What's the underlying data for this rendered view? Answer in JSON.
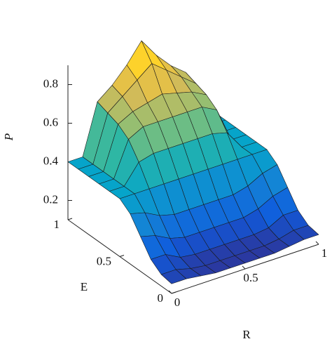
{
  "chart_data": {
    "type": "surface",
    "xlabel": "R",
    "ylabel": "E",
    "zlabel": "P",
    "xlim": [
      0,
      1
    ],
    "xticks": [
      0,
      0.5,
      1
    ],
    "ylim": [
      0,
      1
    ],
    "yticks": [
      0,
      0.5,
      1
    ],
    "zlim": [
      0.1,
      0.9
    ],
    "zticks": [
      0.2,
      0.4,
      0.6,
      0.8
    ],
    "x": [
      0,
      0.1,
      0.2,
      0.3,
      0.4,
      0.5,
      0.6,
      0.7,
      0.8,
      0.9,
      1
    ],
    "y": [
      0,
      0.1,
      0.2,
      0.3,
      0.4,
      0.5,
      0.6,
      0.7,
      0.8,
      0.9,
      1
    ],
    "z": [
      [
        0.15,
        0.15,
        0.14,
        0.13,
        0.13,
        0.13,
        0.13,
        0.13,
        0.14,
        0.15,
        0.15
      ],
      [
        0.16,
        0.16,
        0.14,
        0.13,
        0.13,
        0.13,
        0.13,
        0.13,
        0.14,
        0.16,
        0.16
      ],
      [
        0.2,
        0.2,
        0.16,
        0.15,
        0.15,
        0.15,
        0.15,
        0.15,
        0.16,
        0.2,
        0.2
      ],
      [
        0.28,
        0.26,
        0.22,
        0.2,
        0.2,
        0.2,
        0.2,
        0.2,
        0.22,
        0.26,
        0.28
      ],
      [
        0.36,
        0.34,
        0.3,
        0.28,
        0.28,
        0.28,
        0.28,
        0.28,
        0.3,
        0.34,
        0.36
      ],
      [
        0.4,
        0.4,
        0.4,
        0.4,
        0.4,
        0.4,
        0.4,
        0.4,
        0.4,
        0.4,
        0.4
      ],
      [
        0.4,
        0.4,
        0.5,
        0.52,
        0.52,
        0.52,
        0.52,
        0.52,
        0.5,
        0.4,
        0.4
      ],
      [
        0.4,
        0.4,
        0.58,
        0.62,
        0.62,
        0.62,
        0.62,
        0.62,
        0.58,
        0.4,
        0.4
      ],
      [
        0.4,
        0.4,
        0.62,
        0.66,
        0.68,
        0.7,
        0.68,
        0.66,
        0.62,
        0.4,
        0.4
      ],
      [
        0.4,
        0.4,
        0.64,
        0.7,
        0.76,
        0.82,
        0.76,
        0.7,
        0.64,
        0.4,
        0.4
      ],
      [
        0.4,
        0.4,
        0.66,
        0.72,
        0.8,
        0.9,
        0.8,
        0.72,
        0.66,
        0.4,
        0.4
      ]
    ],
    "colormap": [
      "#352a87",
      "#0f5cdd",
      "#1481d6",
      "#06a4ca",
      "#2eb7a4",
      "#87bf77",
      "#d1bb59",
      "#fec832",
      "#f9fb0e"
    ],
    "edgecolor": "#1a1a1a"
  }
}
